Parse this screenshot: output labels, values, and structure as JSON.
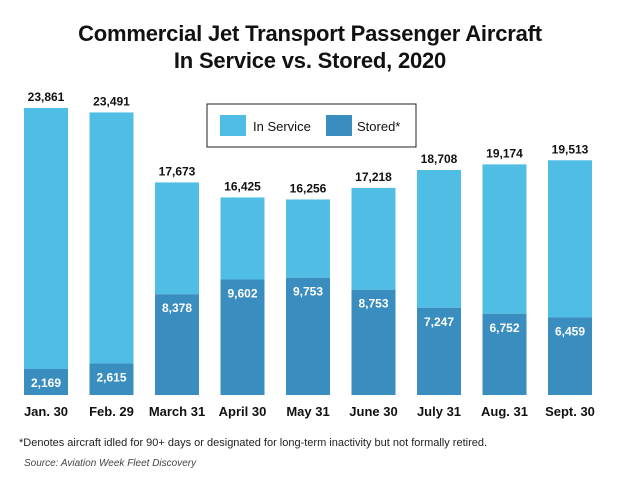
{
  "chart_data": {
    "type": "bar",
    "stacked": true,
    "title": "Commercial Jet Transport Passenger Aircraft In Service vs. Stored, 2020",
    "title_lines": [
      "Commercial Jet Transport Passenger Aircraft",
      "In Service vs. Stored, 2020"
    ],
    "categories": [
      "Jan. 30",
      "Feb. 29",
      "March 31",
      "April 30",
      "May 31",
      "June 30",
      "July 31",
      "Aug. 31",
      "Sept. 30"
    ],
    "series": [
      {
        "name": "Stored*",
        "color": "#3a8dbf",
        "values": [
          2169,
          2615,
          8378,
          9602,
          9753,
          8753,
          7247,
          6752,
          6459
        ],
        "labels": [
          "2,169",
          "2,615",
          "8,378",
          "9,602",
          "9,753",
          "8,753",
          "7,247",
          "6,752",
          "6,459"
        ]
      },
      {
        "name": "In Service",
        "color": "#4fbde4",
        "values": [
          21692,
          20876,
          9295,
          6823,
          6503,
          8465,
          11461,
          12422,
          13054
        ]
      }
    ],
    "totals": [
      23861,
      23491,
      17673,
      16425,
      16256,
      17218,
      18708,
      19174,
      19513
    ],
    "total_labels": [
      "23,861",
      "23,491",
      "17,673",
      "16,425",
      "16,256",
      "17,218",
      "18,708",
      "19,174",
      "19,513"
    ],
    "legend": [
      "In Service",
      "Stored*"
    ],
    "legend_position": "top-right",
    "ylim": [
      0,
      25000
    ],
    "xlabel": "",
    "ylabel": "",
    "grid": false
  },
  "footnote": "*Denotes aircraft idled for 90+ days or designated for long-term inactivity but not formally retired.",
  "source": "Source: Aviation Week Fleet Discovery"
}
